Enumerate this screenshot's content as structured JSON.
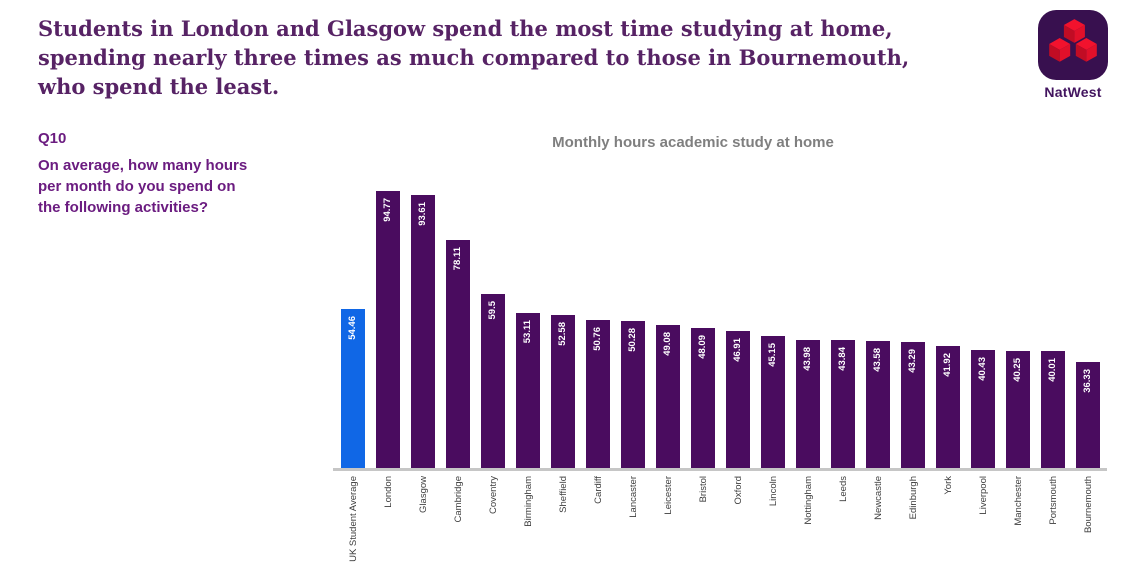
{
  "header": {
    "title": "Students in London and Glasgow spend the most time studying at home, spending nearly three times as much compared to those in Bournemouth, who spend the least."
  },
  "brand": {
    "name": "NatWest",
    "logo_icon": "natwest-cubes-logo",
    "logo_bg_color": "#38104f",
    "logo_text_color": "#42145f",
    "cube_colors": {
      "top": "#f2122d",
      "left": "#c10c24",
      "right": "#e1102a"
    }
  },
  "sidebar": {
    "question_number": "Q10",
    "question_text": "On average, how many hours per month do you spend on the following activities?"
  },
  "chart_data": {
    "type": "bar",
    "title": "Monthly hours academic study at home",
    "categories": [
      "UK Student Average",
      "London",
      "Glasgow",
      "Cambridge",
      "Coventry",
      "Birmingham",
      "Sheffield",
      "Cardiff",
      "Lancaster",
      "Leicester",
      "Bristol",
      "Oxford",
      "Lincoln",
      "Nottingham",
      "Leeds",
      "Newcastle",
      "Edinburgh",
      "York",
      "Liverpool",
      "Manchester",
      "Portsmouth",
      "Bournemouth"
    ],
    "values": [
      54.46,
      94.77,
      93.61,
      78.11,
      59.5,
      53.11,
      52.58,
      50.76,
      50.28,
      49.08,
      48.09,
      46.91,
      45.15,
      43.98,
      43.84,
      43.58,
      43.29,
      41.92,
      40.43,
      40.25,
      40.01,
      36.33
    ],
    "xlabel": "",
    "ylabel": "",
    "ylim": [
      0,
      100
    ],
    "grid": false,
    "legend": "none",
    "value_label_position": "inside-end-rotated-up",
    "category_label_rotation": "rotated-up-90deg",
    "highlight_index": 0,
    "colors": {
      "bar": "#4a0c5f",
      "highlight": "#1067e6",
      "axis_line": "#c6c6c6",
      "title": "#7f7f7f",
      "category_label": "#3d3d3d",
      "value_label": "#ffffff"
    }
  },
  "page_colors": {
    "background": "#ffffff",
    "headline": "#572365",
    "question_text": "#6b1c80"
  }
}
